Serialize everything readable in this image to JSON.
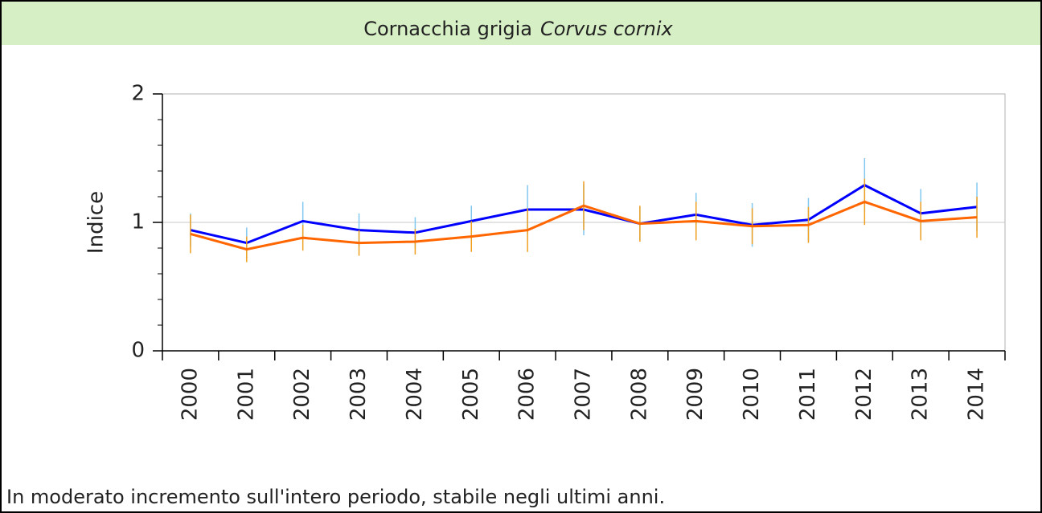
{
  "chart_data": {
    "type": "line",
    "title": "Cornacchia grigia",
    "subtitle": "Corvus cornix",
    "y_label": "Indice",
    "caption": "In moderato incremento sull'intero periodo, stabile negli ultimi anni.",
    "categories": [
      "2000",
      "2001",
      "2002",
      "2003",
      "2004",
      "2005",
      "2006",
      "2007",
      "2008",
      "2009",
      "2010",
      "2011",
      "2012",
      "2013",
      "2014"
    ],
    "series": [
      {
        "color": "#0000ff",
        "error_color": "#80c8f0",
        "values": [
          0.94,
          0.84,
          1.01,
          0.94,
          0.92,
          1.01,
          1.1,
          1.1,
          0.99,
          1.06,
          0.98,
          1.02,
          1.29,
          1.07,
          1.12
        ],
        "errors": [
          0.13,
          0.12,
          0.15,
          0.13,
          0.12,
          0.12,
          0.19,
          0.2,
          0.13,
          0.17,
          0.17,
          0.17,
          0.21,
          0.19,
          0.19
        ]
      },
      {
        "color": "#ff6600",
        "error_color": "#f0a020",
        "values": [
          0.91,
          0.79,
          0.88,
          0.84,
          0.85,
          0.89,
          0.94,
          1.13,
          0.99,
          1.01,
          0.97,
          0.98,
          1.16,
          1.01,
          1.04
        ],
        "errors": [
          0.15,
          0.1,
          0.1,
          0.1,
          0.1,
          0.12,
          0.17,
          0.19,
          0.14,
          0.15,
          0.14,
          0.14,
          0.18,
          0.15,
          0.16
        ]
      }
    ],
    "ylim": [
      0,
      2
    ],
    "yticks": [
      0,
      1,
      2
    ],
    "yminorticks": [
      0.2,
      0.4,
      0.6,
      0.8,
      1.2,
      1.4,
      1.6,
      1.8
    ],
    "hline": 1
  }
}
